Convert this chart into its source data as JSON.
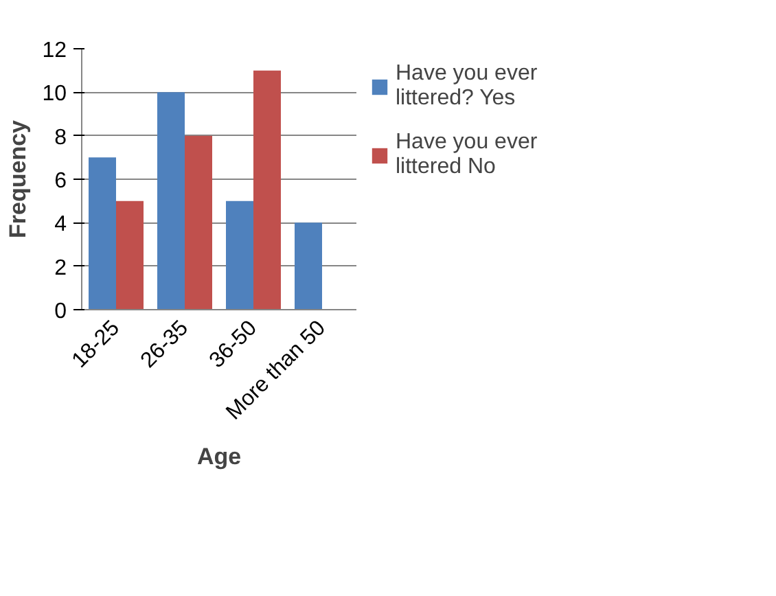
{
  "chart_data": {
    "type": "bar",
    "xlabel": "Age",
    "ylabel": "Frequency",
    "categories": [
      "18-25",
      "26-35",
      "36-50",
      "More than 50"
    ],
    "series": [
      {
        "name": "Have you ever littered? Yes",
        "color": "#4f81bd",
        "values": [
          7,
          10,
          5,
          4
        ]
      },
      {
        "name": "Have you ever littered No",
        "color": "#c0504d",
        "values": [
          5,
          8,
          11,
          null
        ]
      }
    ],
    "ylim": [
      0,
      12
    ],
    "yticks": [
      0,
      2,
      4,
      6,
      8,
      10,
      12
    ],
    "grid": "y",
    "legend": "right"
  }
}
